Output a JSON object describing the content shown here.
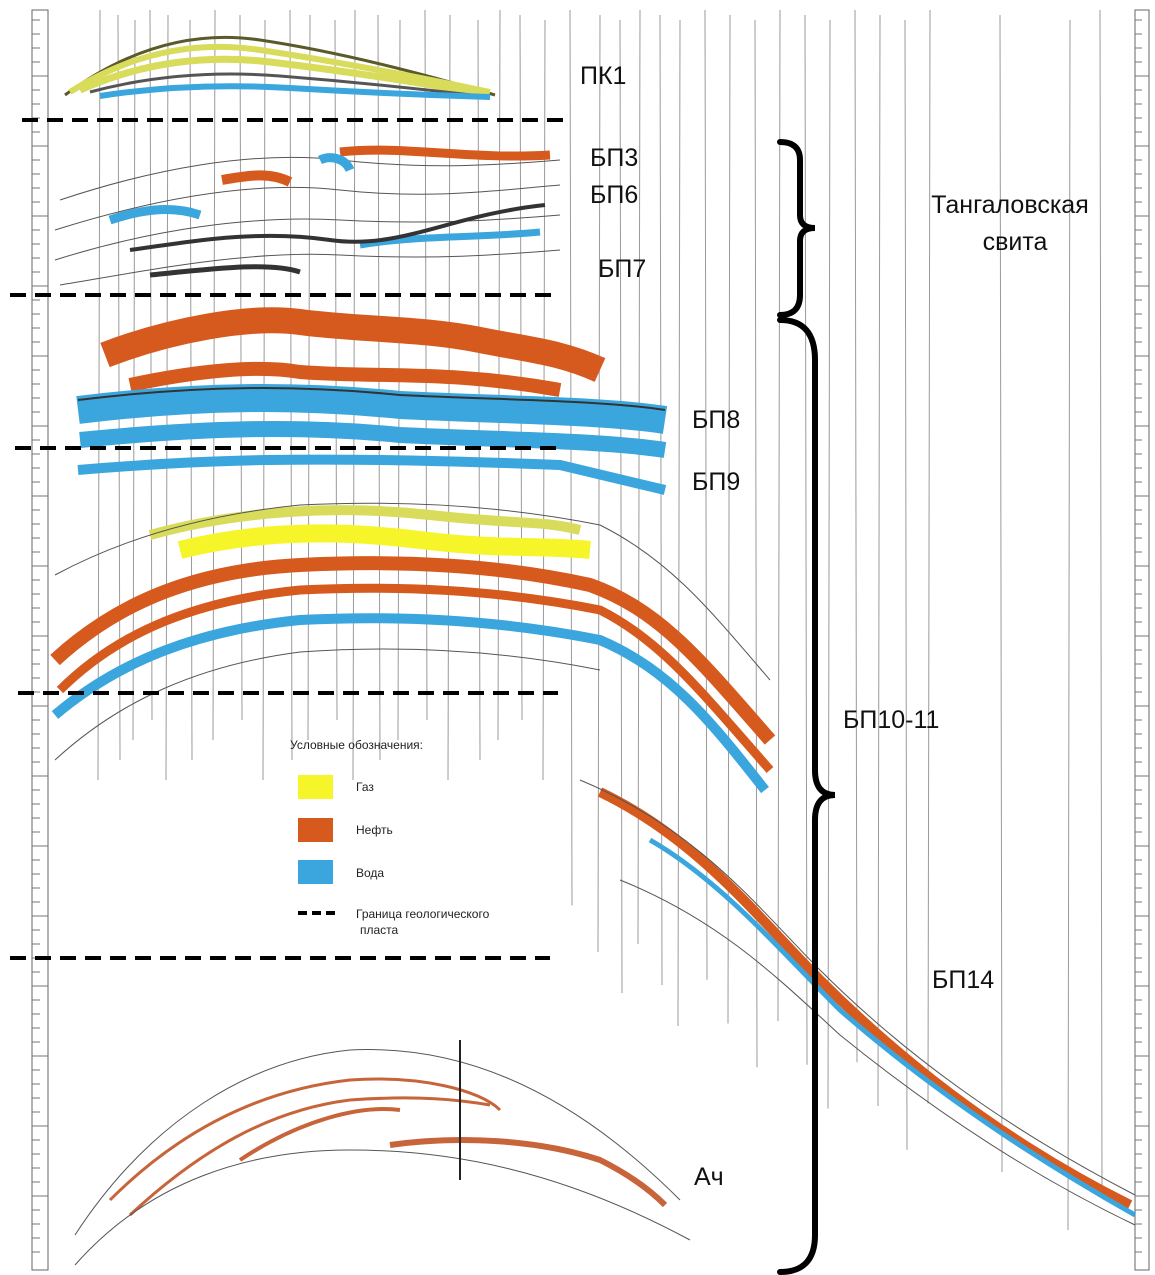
{
  "formations": [
    "ПК1",
    "БП3",
    "БП6",
    "БП7",
    "БП8",
    "БП9",
    "БП10-11",
    "БП14",
    "Ач"
  ],
  "suite": [
    "Тангаловская",
    "свита"
  ],
  "legend": {
    "title": "Условные обозначения:",
    "items": [
      "Газ",
      "Нефть",
      "Вода"
    ],
    "boundary": [
      "Граница геологического",
      "пласта"
    ]
  }
}
